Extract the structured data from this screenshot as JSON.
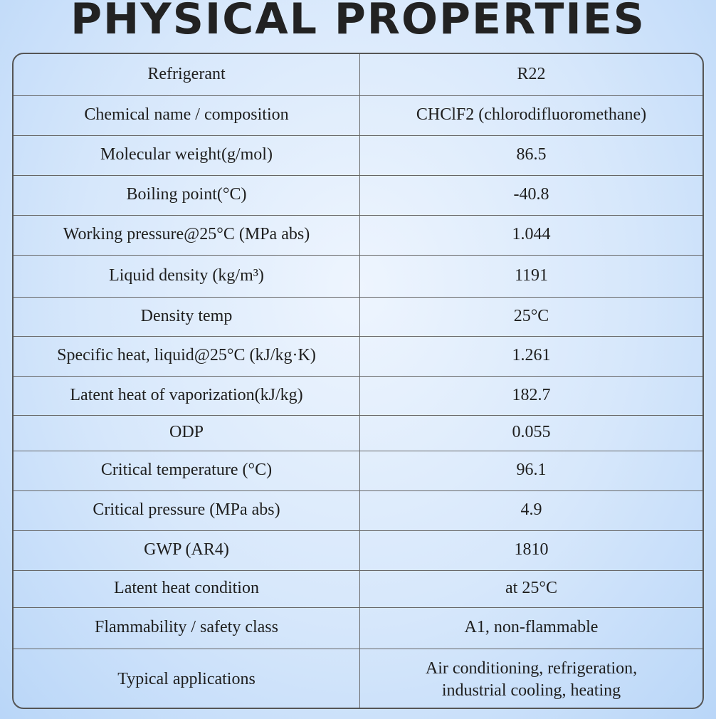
{
  "header": {
    "title": "PHYSICAL PROPERTIES"
  },
  "table": {
    "rows": [
      [
        "Refrigerant",
        "R22"
      ],
      [
        "Chemical name / composition",
        "CHClF2 (chlorodifluoromethane)"
      ],
      [
        "Molecular weight(g/mol)",
        "86.5"
      ],
      [
        "Boiling point(°C)",
        "-40.8"
      ],
      [
        "Working pressure@25°C (MPa abs)",
        "1.044"
      ],
      [
        "Liquid density (kg/m³)",
        "1191"
      ],
      [
        "Density temp",
        "25°C"
      ],
      [
        "Specific heat, liquid@25°C (kJ/kg·K)",
        "1.261"
      ],
      [
        "Latent heat of vaporization(kJ/kg)",
        "182.7"
      ],
      [
        "ODP",
        "0.055"
      ],
      [
        "Critical temperature (°C)",
        "96.1"
      ],
      [
        "Critical pressure (MPa abs)",
        "4.9"
      ],
      [
        "GWP (AR4)",
        "1810"
      ],
      [
        "Latent heat condition",
        "at 25°C"
      ],
      [
        "Flammability / safety class",
        "A1, non-flammable"
      ],
      [
        "Typical applications",
        "Air conditioning, refrigeration, industrial cooling, heating"
      ]
    ]
  }
}
